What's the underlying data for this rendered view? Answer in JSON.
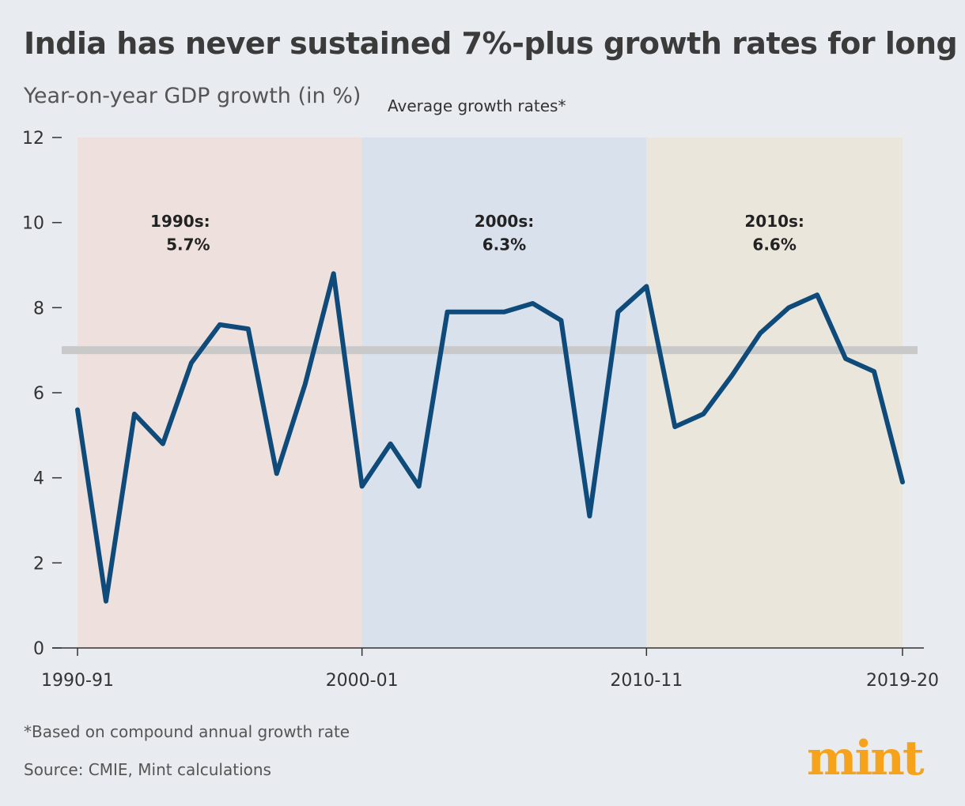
{
  "title": "India has never sustained 7%-plus growth rates for long",
  "subtitle": "Year-on-year GDP growth (in %)",
  "legend_note": "Average growth rates*",
  "footnote": "*Based on compound annual growth rate",
  "source": "Source: CMIE, Mint calculations",
  "logo": "mint",
  "colors": {
    "background": "#e8ebef",
    "line": "#0e4a7a",
    "band_1990s": "#ede0dd",
    "band_2000s": "#d9e2ec",
    "band_2010s": "#ebe6dc",
    "reference_line": "#c9c9c9",
    "logo": "#f7a21b"
  },
  "chart_data": {
    "type": "line",
    "title": "India has never sustained 7%-plus growth rates for long",
    "ylabel": "Year-on-year GDP growth (in %)",
    "ylim": [
      0,
      12
    ],
    "yticks": [
      0,
      2,
      4,
      6,
      8,
      10,
      12
    ],
    "xtick_labels": [
      "1990-91",
      "2000-01",
      "2010-11",
      "2019-20"
    ],
    "x": [
      "1990-91",
      "1991-92",
      "1992-93",
      "1993-94",
      "1994-95",
      "1995-96",
      "1996-97",
      "1997-98",
      "1998-99",
      "1999-00",
      "2000-01",
      "2001-02",
      "2002-03",
      "2003-04",
      "2004-05",
      "2005-06",
      "2006-07",
      "2007-08",
      "2008-09",
      "2009-10",
      "2010-11",
      "2011-12",
      "2012-13",
      "2013-14",
      "2014-15",
      "2015-16",
      "2016-17",
      "2017-18",
      "2018-19",
      "2019-20"
    ],
    "values": [
      5.6,
      1.1,
      5.5,
      4.8,
      6.7,
      7.6,
      7.5,
      4.1,
      6.2,
      8.8,
      3.8,
      4.8,
      3.8,
      7.9,
      7.9,
      7.9,
      8.1,
      7.7,
      3.1,
      7.9,
      8.5,
      5.2,
      5.5,
      6.4,
      7.4,
      8.0,
      8.3,
      6.8,
      6.5,
      3.9
    ],
    "reference_line": 7,
    "bands": [
      {
        "from": "1990-91",
        "to": "2000-01",
        "label": "1990s:",
        "value": "5.7%"
      },
      {
        "from": "2000-01",
        "to": "2010-11",
        "label": "2000s:",
        "value": "6.3%"
      },
      {
        "from": "2010-11",
        "to": "2019-20",
        "label": "2010s:",
        "value": "6.6%"
      }
    ],
    "grid": false
  }
}
